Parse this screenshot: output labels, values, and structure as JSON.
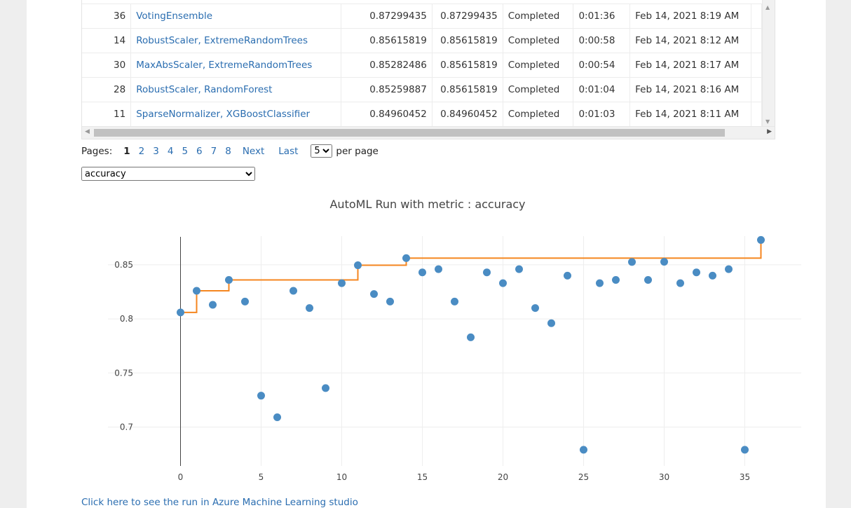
{
  "table": {
    "rows": [
      {
        "iteration": "36",
        "pipeline": "VotingEnsemble",
        "metric": "0.87299435",
        "best": "0.87299435",
        "status": "Completed",
        "duration": "0:01:36",
        "started": "Feb 14, 2021 8:19 AM"
      },
      {
        "iteration": "14",
        "pipeline": "RobustScaler, ExtremeRandomTrees",
        "metric": "0.85615819",
        "best": "0.85615819",
        "status": "Completed",
        "duration": "0:00:58",
        "started": "Feb 14, 2021 8:12 AM"
      },
      {
        "iteration": "30",
        "pipeline": "MaxAbsScaler, ExtremeRandomTrees",
        "metric": "0.85282486",
        "best": "0.85615819",
        "status": "Completed",
        "duration": "0:00:54",
        "started": "Feb 14, 2021 8:17 AM"
      },
      {
        "iteration": "28",
        "pipeline": "RobustScaler, RandomForest",
        "metric": "0.85259887",
        "best": "0.85615819",
        "status": "Completed",
        "duration": "0:01:04",
        "started": "Feb 14, 2021 8:16 AM"
      },
      {
        "iteration": "11",
        "pipeline": "SparseNormalizer, XGBoostClassifier",
        "metric": "0.84960452",
        "best": "0.84960452",
        "status": "Completed",
        "duration": "0:01:03",
        "started": "Feb 14, 2021 8:11 AM"
      }
    ]
  },
  "pager": {
    "label": "Pages:",
    "pages": [
      "1",
      "2",
      "3",
      "4",
      "5",
      "6",
      "7",
      "8"
    ],
    "current": "1",
    "next": "Next",
    "last": "Last",
    "per_page_value": "5",
    "per_page_label": "per page"
  },
  "metric_select": {
    "value": "accuracy"
  },
  "chart_data": {
    "type": "scatter",
    "title": "AutoML Run with metric : accuracy",
    "xlabel": "",
    "ylabel": "",
    "xlim": [
      -4.5,
      38.5
    ],
    "ylim": [
      0.664,
      0.883
    ],
    "xticks": [
      0,
      5,
      10,
      15,
      20,
      25,
      30,
      35
    ],
    "yticks": [
      0.7,
      0.75,
      0.8,
      0.85
    ],
    "ytick_labels": [
      "0.7",
      "0.75",
      "0.8",
      "0.85"
    ],
    "grid": true,
    "legend": "none",
    "colors": {
      "points": "#4a8cc3",
      "best_line": "#f5861f"
    },
    "series": [
      {
        "kind": "points",
        "x": [
          0,
          1,
          2,
          3,
          4,
          5,
          6,
          7,
          8,
          9,
          10,
          11,
          12,
          13,
          14,
          15,
          16,
          17,
          18,
          19,
          20,
          21,
          22,
          23,
          24,
          25,
          26,
          27,
          28,
          29,
          30,
          31,
          32,
          33,
          34,
          35,
          36
        ],
        "y": [
          0.806,
          0.826,
          0.813,
          0.836,
          0.816,
          0.729,
          0.709,
          0.826,
          0.81,
          0.736,
          0.833,
          0.8496,
          0.823,
          0.816,
          0.8562,
          0.843,
          0.846,
          0.816,
          0.783,
          0.843,
          0.833,
          0.846,
          0.81,
          0.796,
          0.84,
          0.679,
          0.833,
          0.836,
          0.8526,
          0.836,
          0.8528,
          0.833,
          0.843,
          0.84,
          0.846,
          0.679,
          0.873
        ]
      },
      {
        "kind": "best-step-line",
        "x": [
          0,
          1,
          3,
          11,
          14,
          36
        ],
        "y": [
          0.806,
          0.826,
          0.836,
          0.8496,
          0.8562,
          0.873
        ]
      }
    ]
  },
  "footer": {
    "link_text": "Click here to see the run in Azure Machine Learning studio"
  }
}
